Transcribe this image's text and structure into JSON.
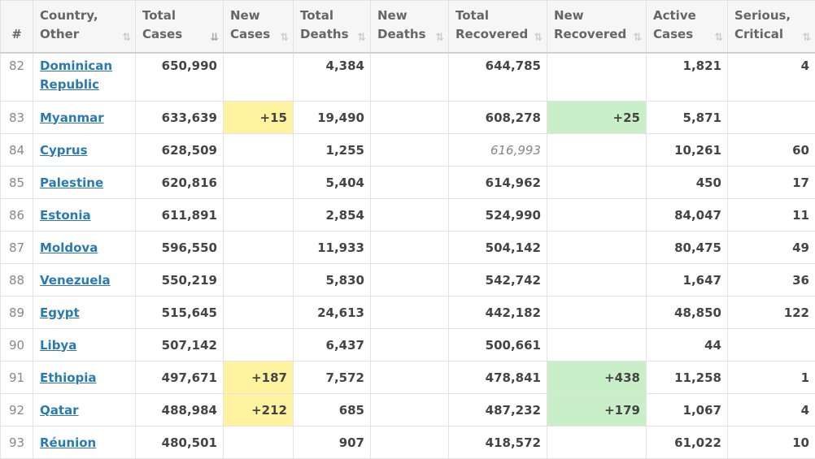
{
  "headers": {
    "rank": "#",
    "country": [
      "Country,",
      "Other"
    ],
    "total_cases": [
      "Total",
      "Cases"
    ],
    "new_cases": [
      "New",
      "Cases"
    ],
    "total_deaths": [
      "Total",
      "Deaths"
    ],
    "new_deaths": [
      "New",
      "Deaths"
    ],
    "total_recovered": [
      "Total",
      "Recovered"
    ],
    "new_recovered": [
      "New",
      "Recovered"
    ],
    "active_cases": [
      "Active",
      "Cases"
    ],
    "serious_critical": [
      "Serious,",
      "Critical"
    ],
    "sort_icon": "⇅",
    "sort_icon_active": "⇊"
  },
  "colors": {
    "new_cases_bg": "#fff3a0",
    "new_recovered_bg": "#c8efc8",
    "link": "#2a7ab0"
  },
  "rows": [
    {
      "rank": "82",
      "country": "Dominican Republic",
      "total_cases": "650,990",
      "new_cases": "",
      "total_deaths": "4,384",
      "new_deaths": "",
      "total_recovered": "644,785",
      "new_recovered": "",
      "active_cases": "1,821",
      "serious_critical": "4"
    },
    {
      "rank": "83",
      "country": "Myanmar",
      "total_cases": "633,639",
      "new_cases": "+15",
      "total_deaths": "19,490",
      "new_deaths": "",
      "total_recovered": "608,278",
      "new_recovered": "+25",
      "active_cases": "5,871",
      "serious_critical": ""
    },
    {
      "rank": "84",
      "country": "Cyprus",
      "total_cases": "628,509",
      "new_cases": "",
      "total_deaths": "1,255",
      "new_deaths": "",
      "total_recovered": "616,993",
      "new_recovered": "",
      "active_cases": "10,261",
      "serious_critical": "60"
    },
    {
      "rank": "85",
      "country": "Palestine",
      "total_cases": "620,816",
      "new_cases": "",
      "total_deaths": "5,404",
      "new_deaths": "",
      "total_recovered": "614,962",
      "new_recovered": "",
      "active_cases": "450",
      "serious_critical": "17"
    },
    {
      "rank": "86",
      "country": "Estonia",
      "total_cases": "611,891",
      "new_cases": "",
      "total_deaths": "2,854",
      "new_deaths": "",
      "total_recovered": "524,990",
      "new_recovered": "",
      "active_cases": "84,047",
      "serious_critical": "11"
    },
    {
      "rank": "87",
      "country": "Moldova",
      "total_cases": "596,550",
      "new_cases": "",
      "total_deaths": "11,933",
      "new_deaths": "",
      "total_recovered": "504,142",
      "new_recovered": "",
      "active_cases": "80,475",
      "serious_critical": "49"
    },
    {
      "rank": "88",
      "country": "Venezuela",
      "total_cases": "550,219",
      "new_cases": "",
      "total_deaths": "5,830",
      "new_deaths": "",
      "total_recovered": "542,742",
      "new_recovered": "",
      "active_cases": "1,647",
      "serious_critical": "36"
    },
    {
      "rank": "89",
      "country": "Egypt",
      "total_cases": "515,645",
      "new_cases": "",
      "total_deaths": "24,613",
      "new_deaths": "",
      "total_recovered": "442,182",
      "new_recovered": "",
      "active_cases": "48,850",
      "serious_critical": "122"
    },
    {
      "rank": "90",
      "country": "Libya",
      "total_cases": "507,142",
      "new_cases": "",
      "total_deaths": "6,437",
      "new_deaths": "",
      "total_recovered": "500,661",
      "new_recovered": "",
      "active_cases": "44",
      "serious_critical": ""
    },
    {
      "rank": "91",
      "country": "Ethiopia",
      "total_cases": "497,671",
      "new_cases": "+187",
      "total_deaths": "7,572",
      "new_deaths": "",
      "total_recovered": "478,841",
      "new_recovered": "+438",
      "active_cases": "11,258",
      "serious_critical": "1"
    },
    {
      "rank": "92",
      "country": "Qatar",
      "total_cases": "488,984",
      "new_cases": "+212",
      "total_deaths": "685",
      "new_deaths": "",
      "total_recovered": "487,232",
      "new_recovered": "+179",
      "active_cases": "1,067",
      "serious_critical": "4"
    },
    {
      "rank": "93",
      "country": "Réunion",
      "total_cases": "480,501",
      "new_cases": "",
      "total_deaths": "907",
      "new_deaths": "",
      "total_recovered": "418,572",
      "new_recovered": "",
      "active_cases": "61,022",
      "serious_critical": "10"
    }
  ]
}
